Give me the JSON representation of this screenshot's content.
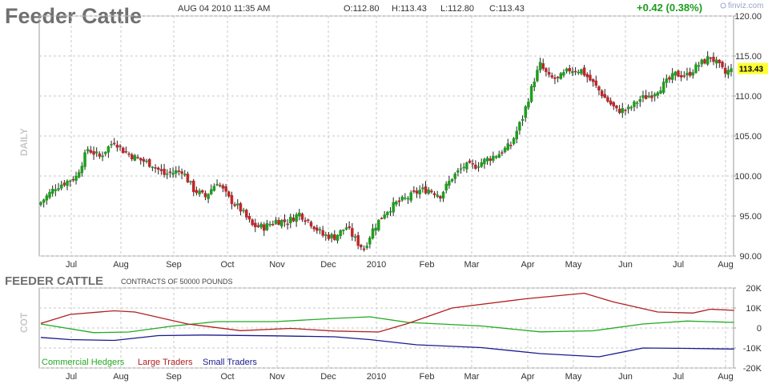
{
  "header": {
    "title": "Feeder Cattle",
    "datetime": "AUG 04 2010 11:35 AM",
    "open": "O:112.80",
    "high": "H:113.43",
    "low": "L:112.80",
    "close": "C:113.43",
    "change": "+0.42 (0.38%)",
    "watermark": "finviz.com",
    "period_label": "DAILY",
    "last_price_label": "113.43"
  },
  "cot_panel": {
    "title": "FEEDER CATTLE",
    "note": "CONTRACTS OF 50000 POUNDS",
    "side_label": "COT"
  },
  "colors": {
    "up": "#1e9e1e",
    "down": "#c0262b",
    "commercial": "#22aa22",
    "large": "#b02020",
    "small": "#1a1a8c",
    "grid": "#c8c8c8",
    "price_tag": "#ffff33"
  },
  "chart_data": [
    {
      "type": "candlestick",
      "title": "Feeder Cattle",
      "x_tick_labels": [
        "Jul",
        "Aug",
        "Sep",
        "Oct",
        "Nov",
        "Dec",
        "2010",
        "Feb",
        "Mar",
        "Apr",
        "May",
        "Jun",
        "Jul",
        "Aug"
      ],
      "y_tick_labels": [
        "120.00",
        "115.00",
        "110.00",
        "105.00",
        "100.00",
        "95.00",
        "90.00"
      ],
      "ylim": [
        90,
        120
      ],
      "grid": true,
      "last": 113.43,
      "close_path": [
        [
          0,
          96.7
        ],
        [
          5,
          98.6
        ],
        [
          12,
          99.9
        ],
        [
          16,
          103.4
        ],
        [
          20,
          102.4
        ],
        [
          25,
          104.4
        ],
        [
          28,
          103.2
        ],
        [
          32,
          102.3
        ],
        [
          38,
          101.4
        ],
        [
          42,
          100.2
        ],
        [
          48,
          100.7
        ],
        [
          52,
          98.3
        ],
        [
          56,
          97.4
        ],
        [
          60,
          99.3
        ],
        [
          64,
          97.2
        ],
        [
          68,
          95.8
        ],
        [
          72,
          93.8
        ],
        [
          76,
          93.6
        ],
        [
          80,
          94.4
        ],
        [
          84,
          94.3
        ],
        [
          88,
          95.3
        ],
        [
          92,
          94.1
        ],
        [
          96,
          92.6
        ],
        [
          100,
          92.4
        ],
        [
          104,
          93.6
        ],
        [
          108,
          91.6
        ],
        [
          110,
          90.9
        ],
        [
          113,
          93.3
        ],
        [
          117,
          95.4
        ],
        [
          121,
          96.6
        ],
        [
          125,
          97.3
        ],
        [
          129,
          98.2
        ],
        [
          132,
          98.3
        ],
        [
          136,
          97.6
        ],
        [
          140,
          99.8
        ],
        [
          144,
          101.2
        ],
        [
          148,
          101.3
        ],
        [
          152,
          102.1
        ],
        [
          156,
          102.8
        ],
        [
          160,
          103.9
        ],
        [
          164,
          107.3
        ],
        [
          168,
          112.1
        ],
        [
          170,
          113.9
        ],
        [
          173,
          112.3
        ],
        [
          176,
          112.1
        ],
        [
          180,
          113.3
        ],
        [
          184,
          113.2
        ],
        [
          188,
          111.6
        ],
        [
          192,
          109.8
        ],
        [
          196,
          108.2
        ],
        [
          200,
          108.3
        ],
        [
          204,
          109.6
        ],
        [
          208,
          110.2
        ],
        [
          212,
          111.4
        ],
        [
          216,
          112.7
        ],
        [
          220,
          112.6
        ],
        [
          224,
          113.9
        ],
        [
          228,
          114.9
        ],
        [
          231,
          113.7
        ],
        [
          233,
          112.8
        ],
        [
          235,
          113.4
        ]
      ]
    },
    {
      "type": "line",
      "title": "FEEDER CATTLE",
      "x_tick_labels": [
        "Jul",
        "Aug",
        "Sep",
        "Oct",
        "Nov",
        "Dec",
        "2010",
        "Feb",
        "Mar",
        "Apr",
        "May",
        "Jun",
        "Jul",
        "Aug"
      ],
      "y_tick_labels": [
        "20K",
        "10K",
        "0",
        "-10K",
        "-20K"
      ],
      "ylim": [
        -20000,
        20000
      ],
      "legend": "bottom-left",
      "series": [
        {
          "name": "Commercial Hedgers",
          "points": [
            [
              0,
              2000
            ],
            [
              18,
              -2300
            ],
            [
              30,
              -2000
            ],
            [
              45,
              1000
            ],
            [
              60,
              3200
            ],
            [
              80,
              3200
            ],
            [
              100,
              4800
            ],
            [
              112,
              5600
            ],
            [
              125,
              2800
            ],
            [
              150,
              1000
            ],
            [
              170,
              -1900
            ],
            [
              188,
              -1400
            ],
            [
              205,
              2000
            ],
            [
              220,
              3500
            ],
            [
              236,
              2800
            ]
          ]
        },
        {
          "name": "Large Traders",
          "points": [
            [
              0,
              2300
            ],
            [
              10,
              6800
            ],
            [
              25,
              8600
            ],
            [
              32,
              8000
            ],
            [
              50,
              2000
            ],
            [
              68,
              -1300
            ],
            [
              85,
              -200
            ],
            [
              100,
              -1500
            ],
            [
              115,
              -2000
            ],
            [
              125,
              2300
            ],
            [
              140,
              10000
            ],
            [
              165,
              14600
            ],
            [
              185,
              17400
            ],
            [
              195,
              13000
            ],
            [
              210,
              8000
            ],
            [
              222,
              7500
            ],
            [
              228,
              9400
            ],
            [
              236,
              8800
            ]
          ]
        },
        {
          "name": "Small Traders",
          "points": [
            [
              0,
              -4700
            ],
            [
              10,
              -5800
            ],
            [
              25,
              -6200
            ],
            [
              40,
              -3800
            ],
            [
              55,
              -3500
            ],
            [
              80,
              -3900
            ],
            [
              100,
              -4400
            ],
            [
              112,
              -5800
            ],
            [
              128,
              -8400
            ],
            [
              150,
              -9800
            ],
            [
              170,
              -12800
            ],
            [
              190,
              -14400
            ],
            [
              205,
              -10000
            ],
            [
              220,
              -10200
            ],
            [
              236,
              -10500
            ]
          ]
        }
      ]
    }
  ]
}
